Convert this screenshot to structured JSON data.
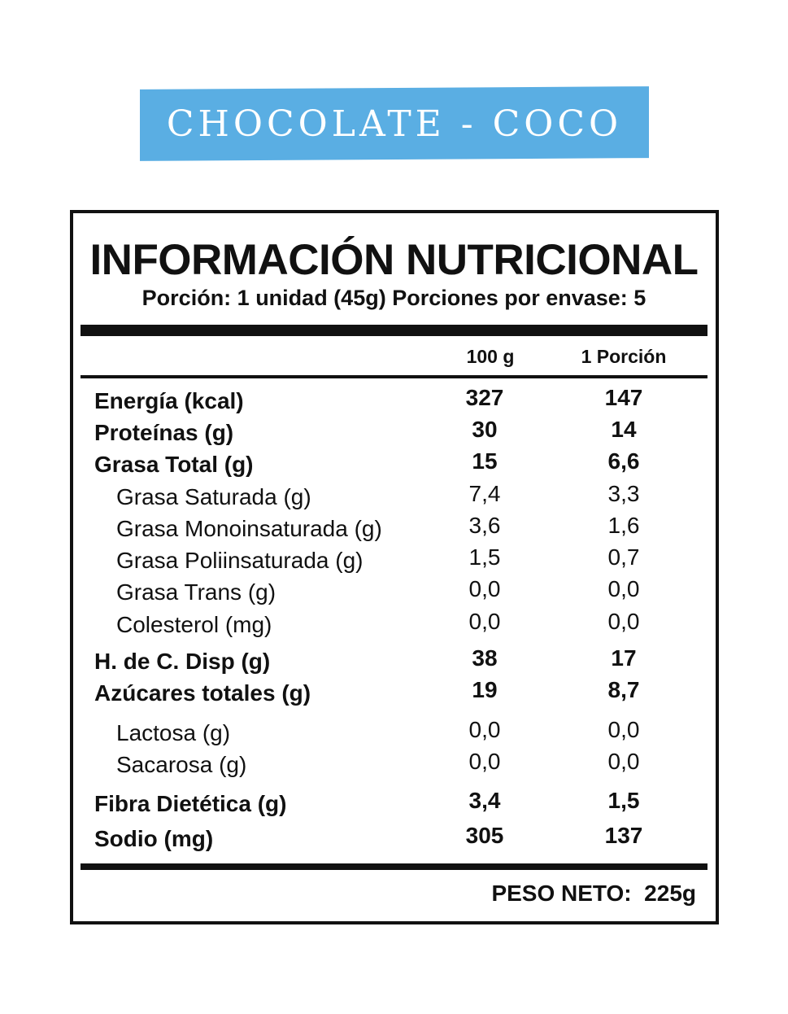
{
  "banner": {
    "flavor": "CHOCOLATE - COCO",
    "color": "#5aaee3"
  },
  "panel": {
    "title": "INFORMACIÓN NUTRICIONAL",
    "serving": "Porción: 1 unidad (45g) Porciones por envase: 5",
    "columns": {
      "per_100g": "100 g",
      "per_portion": "1 Porción"
    },
    "rows": [
      {
        "label": "Energía (kcal)",
        "per_100g": "327",
        "per_portion": "147"
      },
      {
        "label": "Proteínas (g)",
        "per_100g": "30",
        "per_portion": "14"
      },
      {
        "label": "Grasa Total (g)",
        "per_100g": "15",
        "per_portion": "6,6"
      },
      {
        "label": "Grasa Saturada (g)",
        "per_100g": "7,4",
        "per_portion": "3,3"
      },
      {
        "label": "Grasa Monoinsaturada (g)",
        "per_100g": "3,6",
        "per_portion": "1,6"
      },
      {
        "label": "Grasa Poliinsaturada (g)",
        "per_100g": "1,5",
        "per_portion": "0,7"
      },
      {
        "label": "Grasa Trans (g)",
        "per_100g": "0,0",
        "per_portion": "0,0"
      },
      {
        "label": "Colesterol (mg)",
        "per_100g": "0,0",
        "per_portion": "0,0"
      },
      {
        "label": "H. de C. Disp (g)",
        "per_100g": "38",
        "per_portion": "17"
      },
      {
        "label": "Azúcares totales (g)",
        "per_100g": "19",
        "per_portion": "8,7"
      },
      {
        "label": "Lactosa (g)",
        "per_100g": "0,0",
        "per_portion": "0,0"
      },
      {
        "label": "Sacarosa (g)",
        "per_100g": "0,0",
        "per_portion": "0,0"
      },
      {
        "label": "Fibra Dietética (g)",
        "per_100g": "3,4",
        "per_portion": "1,5"
      },
      {
        "label": "Sodio (mg)",
        "per_100g": "305",
        "per_portion": "137"
      }
    ],
    "net_weight": "PESO NETO:  225g"
  }
}
